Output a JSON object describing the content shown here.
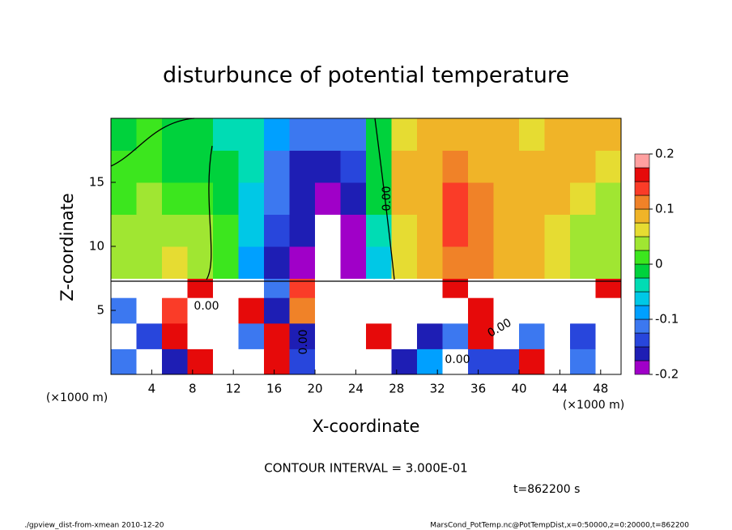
{
  "chart_data": {
    "type": "heatmap",
    "title": "disturbunce of potential temperature",
    "x_label": "X-coordinate",
    "y_label": "Z-coordinate",
    "x_unit": "(×1000 m)",
    "y_unit": "(×1000 m)",
    "contour_interval": "CONTOUR INTERVAL = 3.000E-01",
    "contour_label": "0.00",
    "time": "t=862200 s",
    "footer_left": "./gpview_dist-from-xmean  2010-12-20",
    "footer_right": "MarsCond_PotTemp.nc@PotTempDist,x=0:50000,z=0:20000,t=862200",
    "xlim": [
      0,
      50
    ],
    "ylim": [
      0,
      20
    ],
    "xticks": [
      4,
      8,
      12,
      16,
      20,
      24,
      28,
      32,
      36,
      40,
      44,
      48
    ],
    "yticks": [
      5,
      10,
      15
    ],
    "x_edges": [
      0,
      2.5,
      5,
      7.5,
      10,
      12.5,
      15,
      17.5,
      20,
      22.5,
      25,
      27.5,
      30,
      32.5,
      35,
      37.5,
      40,
      42.5,
      45,
      47.5,
      50
    ],
    "z_edges": [
      0,
      2,
      4,
      6,
      7.5,
      10,
      12.5,
      15,
      17.5,
      20
    ],
    "z": [
      [
        -0.1,
        0.3,
        -0.15,
        0.16,
        0.3,
        -0.3,
        0.16,
        -0.14,
        -0.3,
        -0.3,
        0.3,
        -0.16,
        -0.08,
        0.3,
        -0.14,
        -0.13,
        0.16,
        -0.3,
        -0.1,
        0.3
      ],
      [
        0.3,
        -0.14,
        0.16,
        0.3,
        -0.3,
        -0.1,
        0.16,
        -0.16,
        0.3,
        0.3,
        0.16,
        0.3,
        -0.15,
        -0.12,
        0.16,
        -0.3,
        -0.12,
        0.3,
        -0.14,
        0.3
      ],
      [
        -0.12,
        0.3,
        0.15,
        0.3,
        0.3,
        0.16,
        -0.15,
        0.12,
        -0.3,
        0.3,
        0.3,
        0.3,
        -0.3,
        -0.3,
        0.16,
        0.3,
        -0.3,
        0.3,
        -0.3,
        0.3
      ],
      [
        -0.3,
        0.3,
        -0.3,
        0.16,
        -0.3,
        0.3,
        -0.12,
        0.14,
        -0.3,
        0.3,
        0.3,
        -0.3,
        -0.3,
        0.16,
        0.3,
        -0.3,
        0.3,
        -0.3,
        0.3,
        0.16
      ],
      [
        0.03,
        0.05,
        0.06,
        0.04,
        0.02,
        -0.08,
        -0.15,
        -0.18,
        -0.25,
        -0.19,
        -0.05,
        0.06,
        0.1,
        0.12,
        0.11,
        0.1,
        0.08,
        0.06,
        0.05,
        0.04
      ],
      [
        0.03,
        0.05,
        0.04,
        0.03,
        0.01,
        -0.06,
        -0.14,
        -0.17,
        -0.25,
        -0.18,
        -0.03,
        0.07,
        0.1,
        0.13,
        0.12,
        0.1,
        0.08,
        0.07,
        0.05,
        0.04
      ],
      [
        0.02,
        0.03,
        0.02,
        0.02,
        0.0,
        -0.05,
        -0.12,
        -0.17,
        -0.19,
        -0.16,
        -0.01,
        0.08,
        0.1,
        0.14,
        0.12,
        0.1,
        0.09,
        0.08,
        0.07,
        0.05
      ],
      [
        0.02,
        0.01,
        0.0,
        0.0,
        -0.02,
        -0.04,
        -0.1,
        -0.15,
        -0.16,
        -0.13,
        0.0,
        0.08,
        0.1,
        0.11,
        0.1,
        0.09,
        0.08,
        0.09,
        0.08,
        0.06
      ],
      [
        0.0,
        0.01,
        -0.01,
        -0.02,
        -0.03,
        -0.04,
        -0.08,
        -0.12,
        -0.12,
        -0.1,
        0.0,
        0.07,
        0.09,
        0.1,
        0.09,
        0.08,
        0.07,
        0.09,
        0.1,
        0.08
      ]
    ],
    "levels": [
      -0.2,
      -0.175,
      -0.15,
      -0.125,
      -0.1,
      -0.075,
      -0.05,
      -0.025,
      0,
      0.025,
      0.05,
      0.075,
      0.1,
      0.125,
      0.15,
      0.175,
      0.2
    ],
    "colors": [
      "#a000c8",
      "#1e1eb4",
      "#2846dc",
      "#3c78f0",
      "#00a0ff",
      "#00c8e6",
      "#00dcb4",
      "#00d23c",
      "#3ce61e",
      "#a0e632",
      "#e6dc32",
      "#f0b428",
      "#f08228",
      "#fa3c28",
      "#e60a0a",
      "#ffa0a0"
    ],
    "out_of_range_color": "#ffffff",
    "colorbar_ticks": [
      -0.2,
      -0.1,
      0,
      0.1,
      0.2
    ]
  }
}
